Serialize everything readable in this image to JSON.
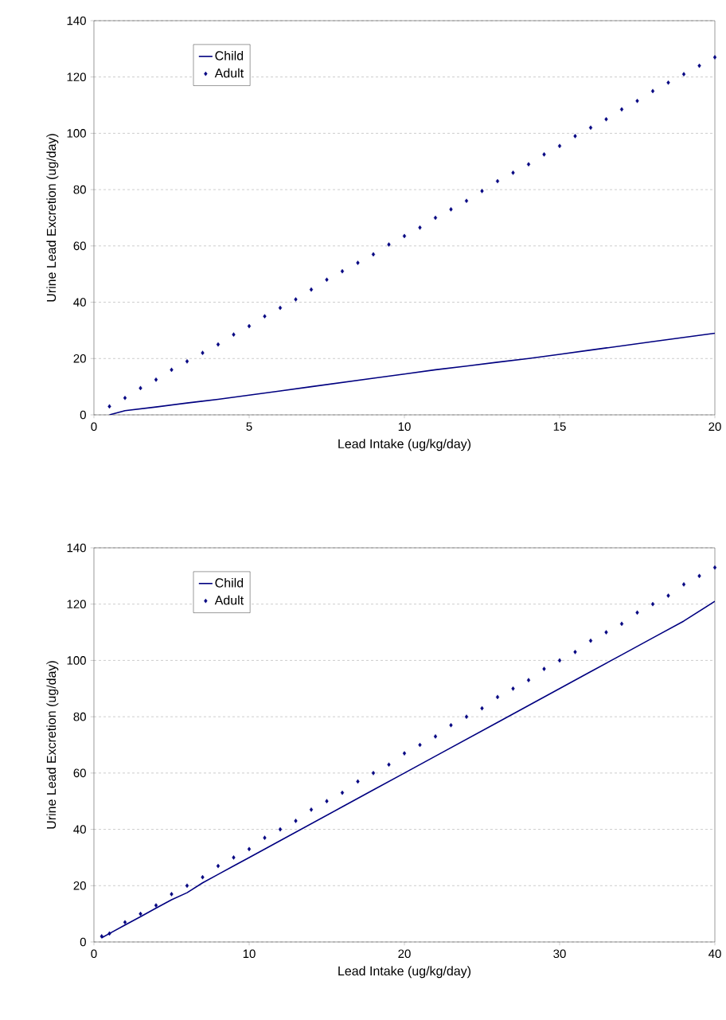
{
  "chart_data": [
    {
      "type": "line",
      "xlabel": "Lead Intake (ug/kg/day)",
      "ylabel": "Urine Lead Excretion (ug/day)",
      "xlim": [
        0,
        20
      ],
      "ylim": [
        0,
        140
      ],
      "xticks": [
        0,
        5,
        10,
        15,
        20
      ],
      "yticks": [
        0,
        20,
        40,
        60,
        80,
        100,
        120,
        140
      ],
      "grid": "y",
      "legend": "top left",
      "series": [
        {
          "name": "Child",
          "color": "#000080",
          "x": [
            0.5,
            1,
            2,
            3,
            4,
            5,
            6,
            7,
            8,
            9,
            10,
            11,
            12,
            13,
            14,
            15,
            16,
            17,
            18,
            19,
            20
          ],
          "values": [
            0,
            1.5,
            2.8,
            4.2,
            5.5,
            7,
            8.5,
            10,
            11.5,
            13,
            14.5,
            16,
            17.3,
            18.7,
            20,
            21.5,
            23,
            24.5,
            26,
            27.5,
            29
          ]
        },
        {
          "name": "Adult",
          "type": "scatter",
          "marker": "diamond",
          "color": "#000080",
          "x": [
            0.5,
            1,
            1.5,
            2,
            2.5,
            3,
            3.5,
            4,
            4.5,
            5,
            5.5,
            6,
            6.5,
            7,
            7.5,
            8,
            8.5,
            9,
            9.5,
            10,
            10.5,
            11,
            11.5,
            12,
            12.5,
            13,
            13.5,
            14,
            14.5,
            15,
            15.5,
            16,
            16.5,
            17,
            17.5,
            18,
            18.5,
            19,
            19.5,
            20
          ],
          "values": [
            3,
            6,
            9.5,
            12.5,
            16,
            19,
            22,
            25,
            28.5,
            31.5,
            35,
            38,
            41,
            44.5,
            48,
            51,
            54,
            57,
            60.5,
            63.5,
            66.5,
            70,
            73,
            76,
            79.5,
            83,
            86,
            89,
            92.5,
            95.5,
            99,
            102,
            105,
            108.5,
            111.5,
            115,
            118,
            121,
            124,
            127
          ]
        }
      ]
    },
    {
      "type": "line",
      "xlabel": "Lead Intake (ug/kg/day)",
      "ylabel": "Urine Lead Excretion (ug/day)",
      "xlim": [
        0,
        40
      ],
      "ylim": [
        0,
        140
      ],
      "xticks": [
        0,
        10,
        20,
        30,
        40
      ],
      "yticks": [
        0,
        20,
        40,
        60,
        80,
        100,
        120,
        140
      ],
      "grid": "y",
      "legend": "top left",
      "series": [
        {
          "name": "Child",
          "color": "#000080",
          "x": [
            0.5,
            1,
            2,
            3,
            4,
            5,
            6,
            7,
            8,
            9,
            10,
            12,
            14,
            16,
            18,
            20,
            22,
            24,
            26,
            28,
            30,
            32,
            34,
            36,
            38,
            40
          ],
          "values": [
            1.5,
            3,
            6,
            9,
            12,
            15,
            17.5,
            21,
            24,
            27,
            30,
            36,
            42,
            48,
            54,
            60,
            66,
            72,
            78,
            84,
            90,
            96,
            102,
            108,
            114,
            121
          ]
        },
        {
          "name": "Adult",
          "type": "scatter",
          "marker": "diamond",
          "color": "#000080",
          "x": [
            0.5,
            1,
            2,
            3,
            4,
            5,
            6,
            7,
            8,
            9,
            10,
            11,
            12,
            13,
            14,
            15,
            16,
            17,
            18,
            19,
            20,
            21,
            22,
            23,
            24,
            25,
            26,
            27,
            28,
            29,
            30,
            31,
            32,
            33,
            34,
            35,
            36,
            37,
            38,
            39,
            40
          ],
          "values": [
            2,
            3,
            7,
            10,
            13,
            17,
            20,
            23,
            27,
            30,
            33,
            37,
            40,
            43,
            47,
            50,
            53,
            57,
            60,
            63,
            67,
            70,
            73,
            77,
            80,
            83,
            87,
            90,
            93,
            97,
            100,
            103,
            107,
            110,
            113,
            117,
            120,
            123,
            127,
            130,
            133
          ]
        }
      ]
    }
  ]
}
